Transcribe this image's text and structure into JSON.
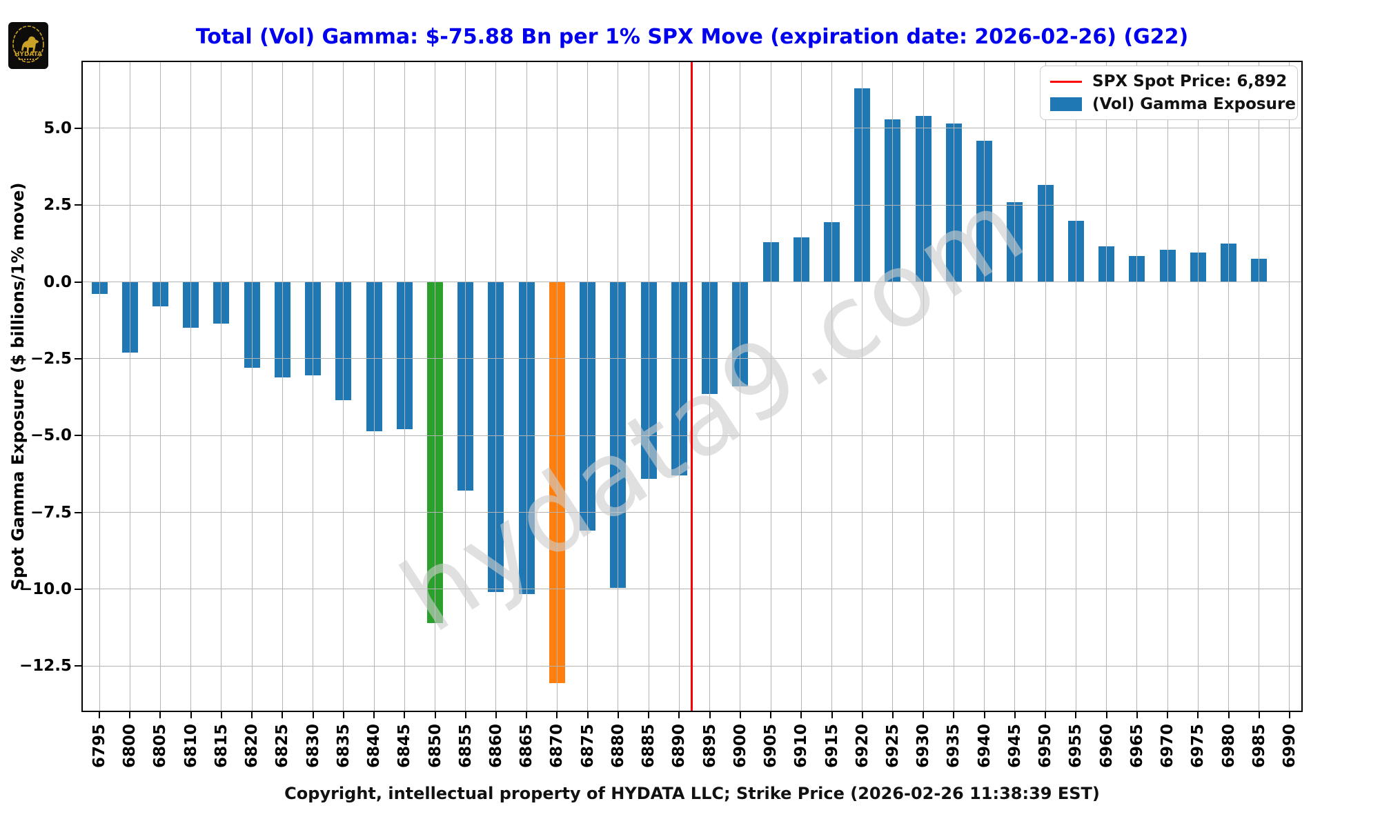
{
  "logo": {
    "brand": "HYDATA"
  },
  "header": {
    "title": "Total (Vol) Gamma: $-75.88 Bn per 1% SPX Move (expiration date: 2026-02-26) (G22)"
  },
  "legend": {
    "spot_label": "SPX Spot Price: 6,892",
    "exposure_label": "(Vol) Gamma Exposure"
  },
  "watermark": "hydata9.com",
  "footer": {
    "xlabel": "Copyright, intellectual property of HYDATA LLC; Strike Price (2026-02-26 11:38:39 EST)"
  },
  "chart_data": {
    "type": "bar",
    "title": "Total (Vol) Gamma: $-75.88 Bn per 1% SPX Move (expiration date: 2026-02-26) (G22)",
    "ylabel": "Spot Gamma Exposure ($ billions/1% move)",
    "xlabel": "Copyright, intellectual property of HYDATA LLC; Strike Price (2026-02-26 11:38:39 EST)",
    "categories": [
      "6795",
      "6800",
      "6805",
      "6810",
      "6815",
      "6820",
      "6825",
      "6830",
      "6835",
      "6840",
      "6845",
      "6850",
      "6855",
      "6860",
      "6865",
      "6870",
      "6875",
      "6880",
      "6885",
      "6890",
      "6895",
      "6900",
      "6905",
      "6910",
      "6915",
      "6920",
      "6925",
      "6930",
      "6935",
      "6940",
      "6945",
      "6950",
      "6955",
      "6960",
      "6965",
      "6970",
      "6975",
      "6980",
      "6985",
      "6990"
    ],
    "values": [
      -0.4,
      -2.3,
      -0.8,
      -1.5,
      -1.35,
      -2.8,
      -3.1,
      -3.05,
      -3.85,
      -4.85,
      -4.8,
      -11.1,
      -6.8,
      -10.1,
      -10.15,
      -13.05,
      -8.1,
      -9.95,
      -6.4,
      -6.3,
      -3.65,
      -3.4,
      1.3,
      1.45,
      1.95,
      6.3,
      5.3,
      5.4,
      5.15,
      4.6,
      2.6,
      3.15,
      2.0,
      1.15,
      0.85,
      1.05,
      0.95,
      1.25,
      0.75,
      0.0
    ],
    "series_name": "(Vol) Gamma Exposure",
    "spot_price": 6892,
    "spot_price_label": "SPX Spot Price: 6,892",
    "yticks": [
      5.0,
      2.5,
      0.0,
      -2.5,
      -5.0,
      -7.5,
      -10.0,
      -12.5
    ],
    "ylim": [
      -14.0,
      7.2
    ],
    "grid": true,
    "legend_position": "upper right",
    "colors": {
      "bar_default": "#1f77b4",
      "spot_line": "#ff0000",
      "grid": "#b4b4b4",
      "title": "#0000ee",
      "highlight_green": "#2ca02c",
      "highlight_orange": "#ff7f0e"
    },
    "highlighted_bars": {
      "6850": "#2ca02c",
      "6870": "#ff7f0e"
    }
  }
}
